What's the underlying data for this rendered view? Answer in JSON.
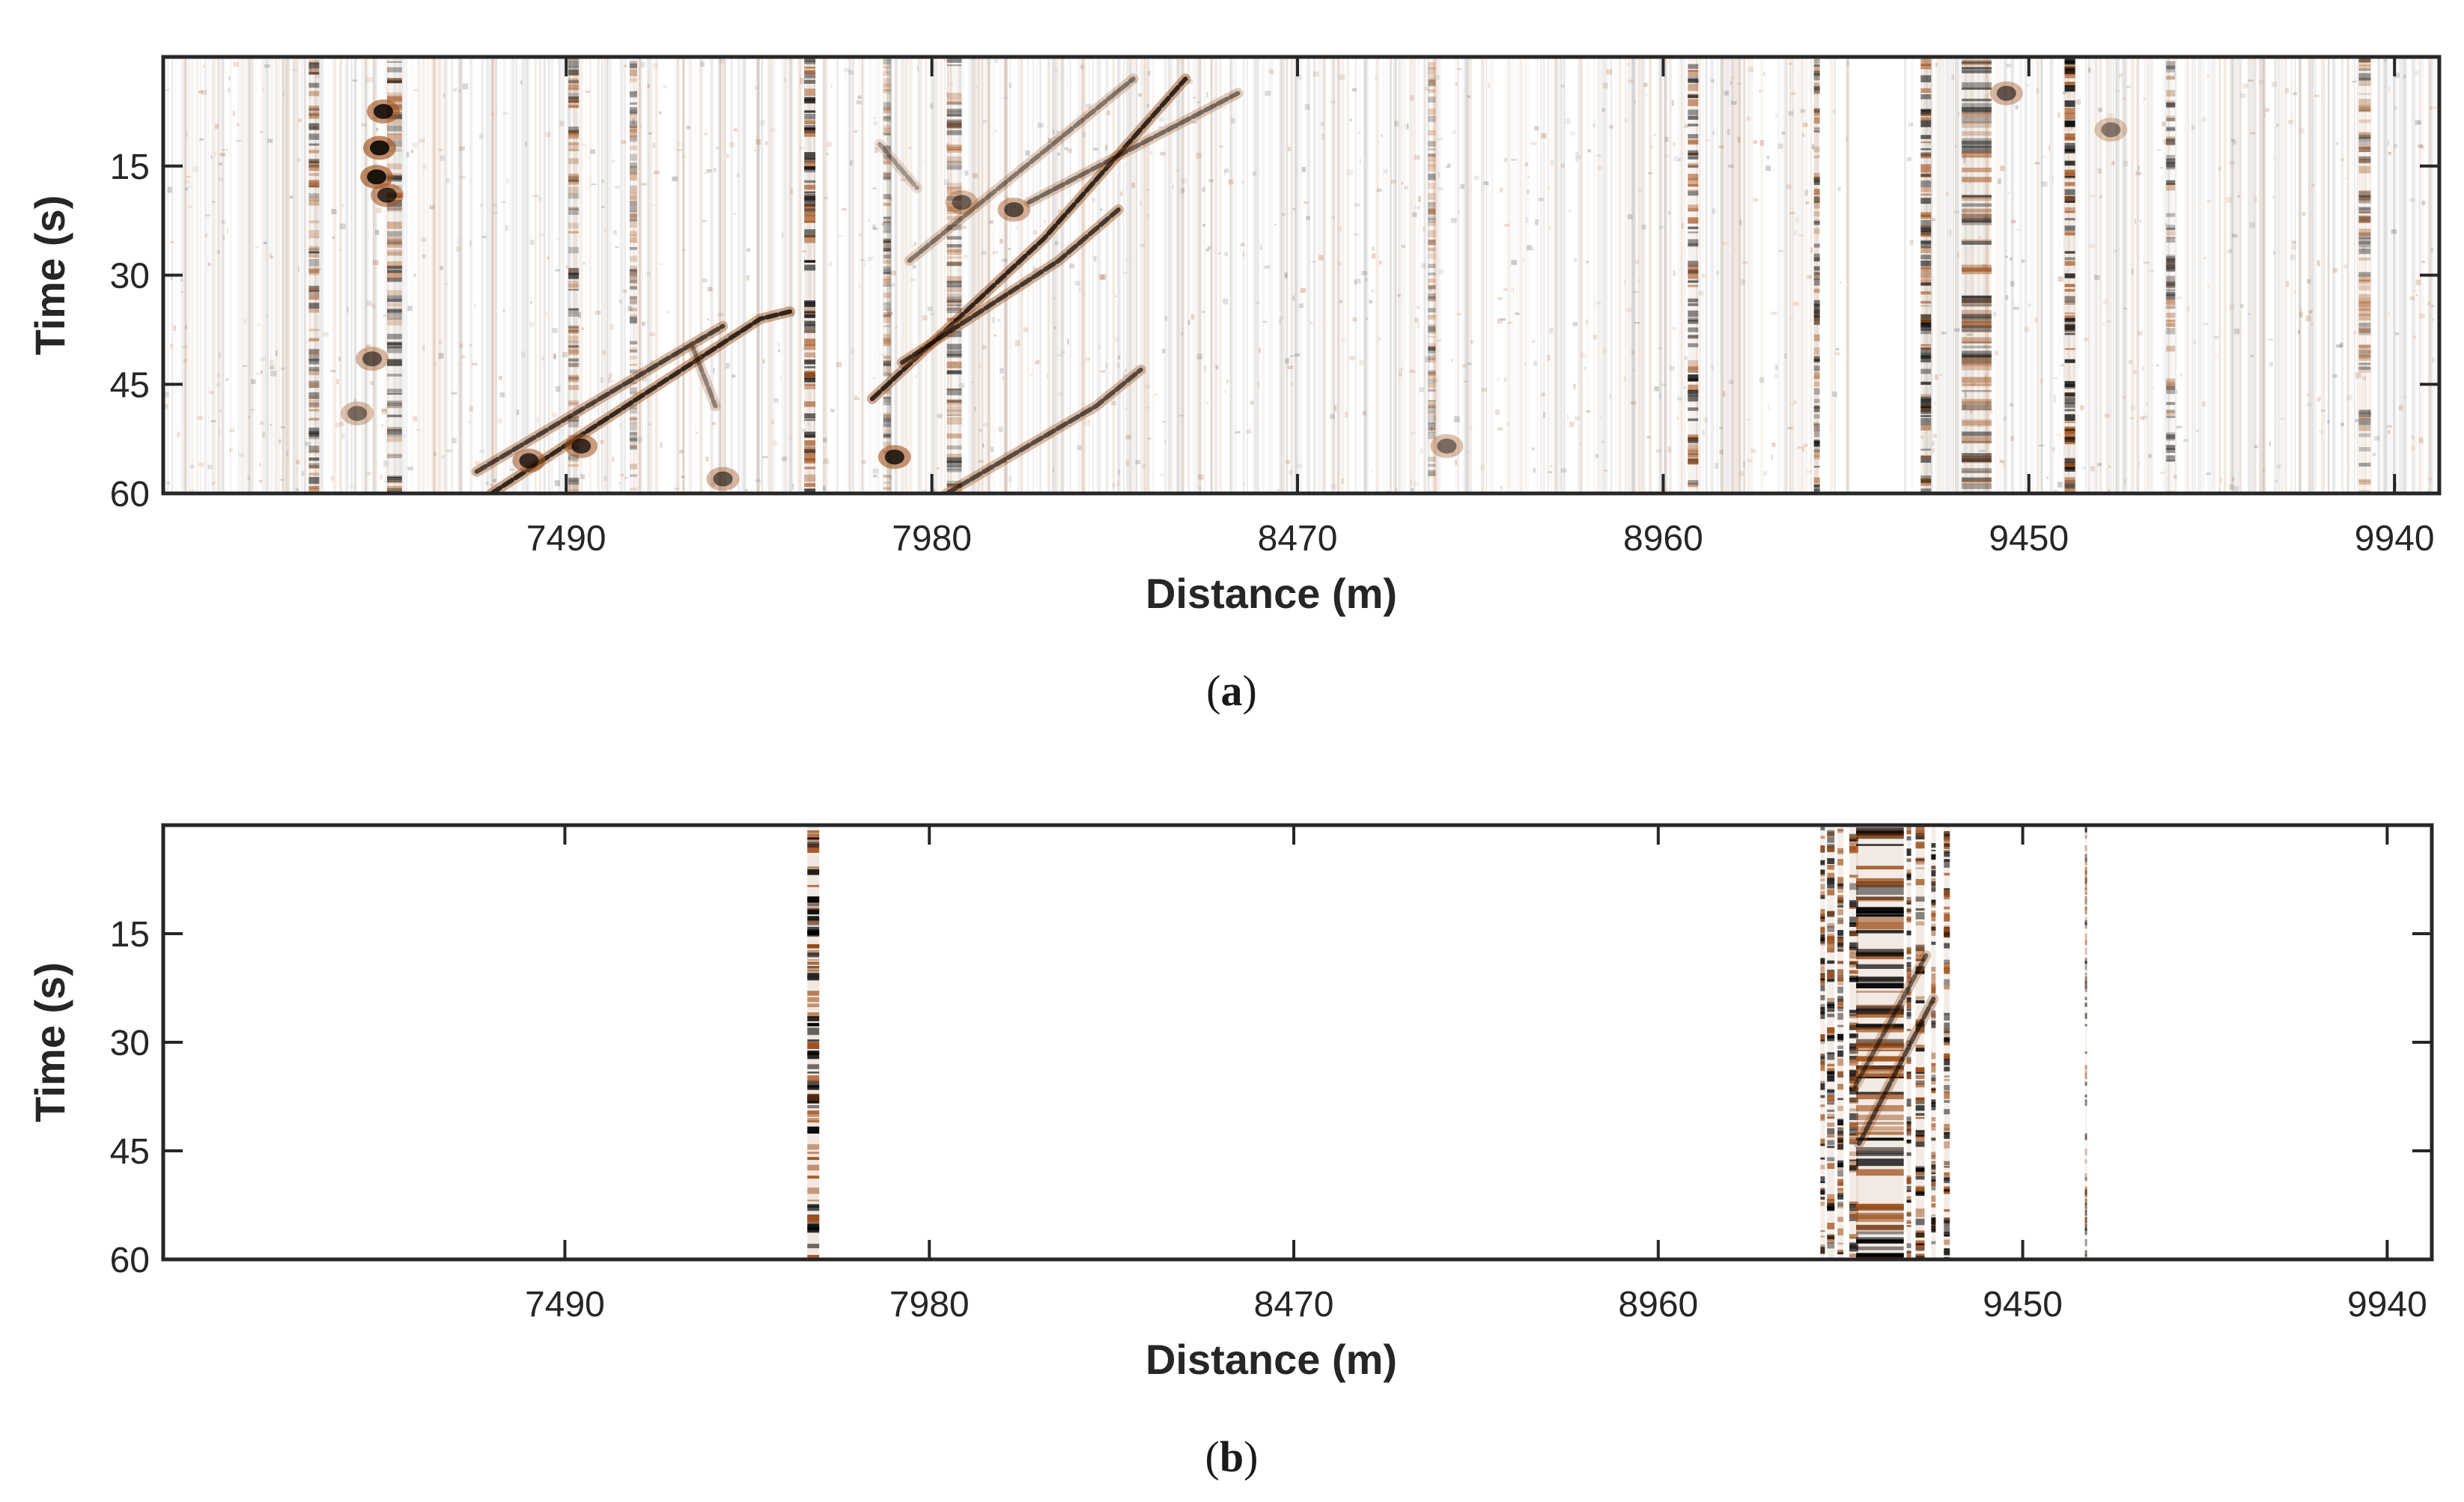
{
  "chart_data": [
    {
      "type": "heatmap",
      "panel": "a",
      "caption_letter": "a",
      "xlabel": "Distance (m)",
      "ylabel": "Time (s)",
      "xlim": [
        6950,
        10000
      ],
      "ylim": [
        0,
        60
      ],
      "y_reversed": true,
      "x_ticks": [
        7490,
        7980,
        8470,
        8960,
        9450,
        9940
      ],
      "y_ticks": [
        15,
        30,
        45,
        60
      ],
      "colormap": [
        "#000000",
        "#ffffff",
        "#a0521e"
      ],
      "grid": false,
      "background_noise": "high",
      "vertical_bands": [
        {
          "x": 7152,
          "width": 14,
          "intensity": 0.55
        },
        {
          "x": 7260,
          "width": 20,
          "intensity": 0.5
        },
        {
          "x": 7500,
          "width": 14,
          "intensity": 0.45
        },
        {
          "x": 7580,
          "width": 10,
          "intensity": 0.35
        },
        {
          "x": 7820,
          "width": 22,
          "intensity": 0.8
        },
        {
          "x": 7920,
          "width": 10,
          "intensity": 0.4
        },
        {
          "x": 8010,
          "width": 20,
          "intensity": 0.45
        },
        {
          "x": 8650,
          "width": 10,
          "intensity": 0.3
        },
        {
          "x": 9000,
          "width": 14,
          "intensity": 0.6
        },
        {
          "x": 9170,
          "width": 16,
          "intensity": 0.55
        },
        {
          "x": 9250,
          "width": 14,
          "intensity": 0.7
        },
        {
          "x": 9310,
          "width": 18,
          "intensity": 0.7
        },
        {
          "x": 9380,
          "width": 40,
          "intensity": 0.55
        },
        {
          "x": 9505,
          "width": 14,
          "intensity": 0.85
        },
        {
          "x": 9640,
          "width": 12,
          "intensity": 0.4
        },
        {
          "x": 9900,
          "width": 16,
          "intensity": 0.45
        }
      ],
      "gaps": [
        {
          "x0": 7824,
          "x1": 7834
        },
        {
          "x0": 9170,
          "x1": 9182
        },
        {
          "x0": 9198,
          "x1": 9205
        },
        {
          "x0": 9210,
          "x1": 9283
        },
        {
          "x0": 9297,
          "x1": 9305
        }
      ],
      "moveout_events": [
        {
          "points": [
            [
              7390,
              60
            ],
            [
              7750,
              36
            ],
            [
              7790,
              35
            ]
          ],
          "intensity": 0.9
        },
        {
          "points": [
            [
              7370,
              57
            ],
            [
              7650,
              40
            ],
            [
              7700,
              37
            ]
          ],
          "intensity": 0.75
        },
        {
          "points": [
            [
              7900,
              47
            ],
            [
              8130,
              25
            ],
            [
              8320,
              3
            ]
          ],
          "intensity": 0.9
        },
        {
          "points": [
            [
              7940,
              42
            ],
            [
              8150,
              28
            ],
            [
              8230,
              21
            ]
          ],
          "intensity": 0.8
        },
        {
          "points": [
            [
              8000,
              60
            ],
            [
              8200,
              48
            ],
            [
              8260,
              43
            ]
          ],
          "intensity": 0.7
        },
        {
          "points": [
            [
              7950,
              28
            ],
            [
              8250,
              3
            ]
          ],
          "intensity": 0.5
        },
        {
          "points": [
            [
              8110,
              20
            ],
            [
              8390,
              5
            ]
          ],
          "intensity": 0.55
        },
        {
          "points": [
            [
              7660,
              40
            ],
            [
              7690,
              48
            ]
          ],
          "intensity": 0.45
        },
        {
          "points": [
            [
              7910,
              12
            ],
            [
              7960,
              18
            ]
          ],
          "intensity": 0.35
        }
      ],
      "blobs": [
        {
          "x": 7245,
          "y": 7.5,
          "intensity": 0.9
        },
        {
          "x": 7240,
          "y": 12.5,
          "intensity": 0.95
        },
        {
          "x": 7236,
          "y": 16.5,
          "intensity": 0.95
        },
        {
          "x": 7250,
          "y": 19,
          "intensity": 0.8
        },
        {
          "x": 7230,
          "y": 41.5,
          "intensity": 0.6
        },
        {
          "x": 7210,
          "y": 49,
          "intensity": 0.5
        },
        {
          "x": 7510,
          "y": 53.5,
          "intensity": 0.8
        },
        {
          "x": 7440,
          "y": 55.5,
          "intensity": 0.8
        },
        {
          "x": 7700,
          "y": 58,
          "intensity": 0.6
        },
        {
          "x": 7930,
          "y": 55,
          "intensity": 0.85
        },
        {
          "x": 8090,
          "y": 21,
          "intensity": 0.65
        },
        {
          "x": 8020,
          "y": 20,
          "intensity": 0.55
        },
        {
          "x": 8670,
          "y": 53.5,
          "intensity": 0.5
        },
        {
          "x": 9420,
          "y": 5,
          "intensity": 0.6
        },
        {
          "x": 9560,
          "y": 10,
          "intensity": 0.45
        },
        {
          "x": 9260,
          "y": 21,
          "intensity": 0.6
        }
      ]
    },
    {
      "type": "heatmap",
      "panel": "b",
      "caption_letter": "b",
      "xlabel": "Distance (m)",
      "ylabel": "Time (s)",
      "xlim": [
        6950,
        10000
      ],
      "ylim": [
        0,
        60
      ],
      "y_reversed": true,
      "x_ticks": [
        7490,
        7980,
        8470,
        8960,
        9450,
        9940
      ],
      "y_ticks": [
        15,
        30,
        45,
        60
      ],
      "colormap": [
        "#000000",
        "#ffffff",
        "#a0521e"
      ],
      "grid": false,
      "background_noise": "none",
      "vertical_bands": [
        {
          "x": 7824,
          "width": 16,
          "intensity": 1.0
        },
        {
          "x": 9181,
          "width": 6,
          "intensity": 0.8
        },
        {
          "x": 9192,
          "width": 10,
          "intensity": 0.85
        },
        {
          "x": 9205,
          "width": 8,
          "intensity": 0.8
        },
        {
          "x": 9223,
          "width": 12,
          "intensity": 0.85
        },
        {
          "x": 9258,
          "width": 64,
          "intensity": 0.95
        },
        {
          "x": 9297,
          "width": 6,
          "intensity": 0.8
        },
        {
          "x": 9312,
          "width": 12,
          "intensity": 0.85
        },
        {
          "x": 9330,
          "width": 6,
          "intensity": 0.8
        },
        {
          "x": 9348,
          "width": 8,
          "intensity": 0.85
        },
        {
          "x": 9535,
          "width": 3,
          "intensity": 0.6
        }
      ],
      "gaps": [],
      "moveout_events": [
        {
          "points": [
            [
              9230,
              44
            ],
            [
              9330,
              24
            ]
          ],
          "intensity": 0.7
        },
        {
          "points": [
            [
              9225,
              36
            ],
            [
              9320,
              18
            ]
          ],
          "intensity": 0.6
        }
      ],
      "blobs": []
    }
  ]
}
